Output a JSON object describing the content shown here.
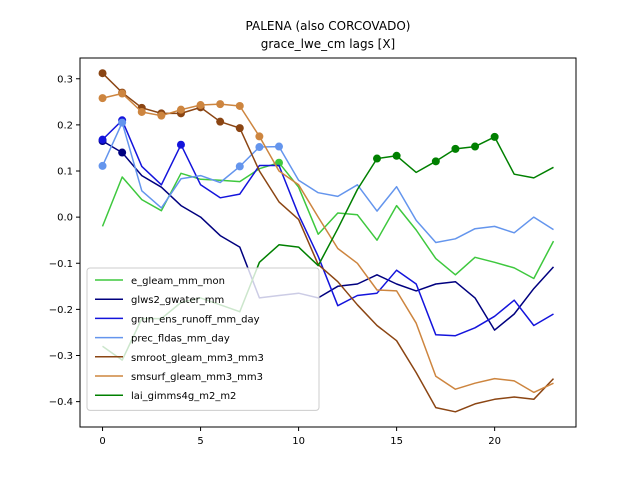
{
  "chart_data": {
    "type": "line",
    "title": "PALENA (also CORCOVADO)",
    "subtitle": "grace_lwe_cm lags [X]",
    "xlabel": "",
    "ylabel": "",
    "xlim": [
      -1.15,
      24.15
    ],
    "ylim": [
      -0.455,
      0.345
    ],
    "xticks": [
      0,
      5,
      10,
      15,
      20
    ],
    "yticks": [
      -0.4,
      -0.3,
      -0.2,
      -0.1,
      0.0,
      0.1,
      0.2,
      0.3
    ],
    "ytick_labels": [
      "−0.4",
      "−0.3",
      "−0.2",
      "−0.1",
      "0.0",
      "0.1",
      "0.2",
      "0.3"
    ],
    "grid": false,
    "legend_position": "lower-left",
    "series": [
      {
        "name": "e_gleam_mm_mon",
        "color": "#3ec83e",
        "x": [
          0,
          1,
          2,
          3,
          4,
          5,
          6,
          7,
          8,
          9,
          10,
          11,
          12,
          13,
          14,
          15,
          16,
          17,
          18,
          19,
          20,
          21,
          22,
          23
        ],
        "values": [
          -0.02,
          0.087,
          0.038,
          0.014,
          0.095,
          0.082,
          0.08,
          0.077,
          0.105,
          0.118,
          0.065,
          -0.037,
          0.009,
          0.005,
          -0.05,
          0.025,
          -0.028,
          -0.09,
          -0.125,
          -0.087,
          -0.098,
          -0.11,
          -0.133,
          -0.052
        ],
        "markers": [
          9
        ]
      },
      {
        "name": "glws2_gwater_mm",
        "color": "#00007f",
        "x": [
          0,
          1,
          2,
          3,
          4,
          5,
          6,
          7,
          8,
          9,
          10,
          11,
          12,
          13,
          14,
          15,
          16,
          17,
          18,
          19,
          20,
          21,
          22,
          23
        ],
        "values": [
          0.165,
          0.14,
          0.09,
          0.065,
          0.025,
          0.0,
          -0.04,
          -0.065,
          -0.175,
          -0.17,
          -0.165,
          -0.175,
          -0.15,
          -0.145,
          -0.125,
          -0.145,
          -0.16,
          -0.145,
          -0.14,
          -0.175,
          -0.245,
          -0.21,
          -0.155,
          -0.108
        ],
        "markers": [
          0,
          1
        ]
      },
      {
        "name": "grun_ens_runoff_mm_day",
        "color": "#1414dc",
        "x": [
          0,
          1,
          2,
          3,
          4,
          5,
          6,
          7,
          8,
          9,
          10,
          11,
          12,
          13,
          14,
          15,
          16,
          17,
          18,
          19,
          20,
          21,
          22,
          23
        ],
        "values": [
          0.168,
          0.21,
          0.11,
          0.07,
          0.157,
          0.07,
          0.042,
          0.05,
          0.112,
          0.112,
          0.005,
          -0.085,
          -0.192,
          -0.17,
          -0.165,
          -0.115,
          -0.145,
          -0.255,
          -0.257,
          -0.24,
          -0.215,
          -0.18,
          -0.235,
          -0.21
        ],
        "markers": [
          0,
          1,
          4
        ]
      },
      {
        "name": "prec_fldas_mm_day",
        "color": "#6495ed",
        "x": [
          0,
          1,
          2,
          3,
          4,
          5,
          6,
          7,
          8,
          9,
          10,
          11,
          12,
          13,
          14,
          15,
          16,
          17,
          18,
          19,
          20,
          21,
          22,
          23
        ],
        "values": [
          0.111,
          0.205,
          0.057,
          0.02,
          0.083,
          0.09,
          0.075,
          0.11,
          0.152,
          0.153,
          0.08,
          0.053,
          0.045,
          0.07,
          0.013,
          0.066,
          -0.007,
          -0.055,
          -0.047,
          -0.025,
          -0.02,
          -0.034,
          0.0,
          -0.027
        ],
        "markers": [
          0,
          1,
          7,
          8,
          9
        ]
      },
      {
        "name": "smroot_gleam_mm3_mm3",
        "color": "#8b4513",
        "x": [
          0,
          1,
          2,
          3,
          4,
          5,
          6,
          7,
          8,
          9,
          10,
          11,
          12,
          13,
          14,
          15,
          16,
          17,
          18,
          19,
          20,
          21,
          22,
          23
        ],
        "values": [
          0.312,
          0.27,
          0.237,
          0.225,
          0.225,
          0.238,
          0.207,
          0.193,
          0.1,
          0.033,
          -0.005,
          -0.103,
          -0.14,
          -0.19,
          -0.235,
          -0.268,
          -0.337,
          -0.413,
          -0.422,
          -0.405,
          -0.395,
          -0.39,
          -0.395,
          -0.35
        ],
        "markers": [
          0,
          1,
          2,
          3,
          4,
          5,
          6,
          7
        ]
      },
      {
        "name": "smsurf_gleam_mm3_mm3",
        "color": "#cd853f",
        "x": [
          0,
          1,
          2,
          3,
          4,
          5,
          6,
          7,
          8,
          9,
          10,
          11,
          12,
          13,
          14,
          15,
          16,
          17,
          18,
          19,
          20,
          21,
          22,
          23
        ],
        "values": [
          0.258,
          0.268,
          0.228,
          0.22,
          0.233,
          0.243,
          0.245,
          0.241,
          0.175,
          0.1,
          0.07,
          0.0,
          -0.068,
          -0.1,
          -0.158,
          -0.16,
          -0.23,
          -0.345,
          -0.373,
          -0.36,
          -0.35,
          -0.355,
          -0.38,
          -0.36
        ],
        "markers": [
          0,
          1,
          2,
          3,
          4,
          5,
          6,
          7,
          8
        ]
      },
      {
        "name": "lai_gimms4g_m2_m2",
        "color": "#008000",
        "x": [
          0,
          1,
          2,
          3,
          4,
          5,
          6,
          7,
          8,
          9,
          10,
          11,
          12,
          13,
          14,
          15,
          16,
          17,
          18,
          19,
          20,
          21,
          22,
          23
        ],
        "values": [
          -0.28,
          -0.31,
          -0.22,
          -0.22,
          -0.185,
          -0.175,
          -0.19,
          -0.205,
          -0.098,
          -0.06,
          -0.065,
          -0.105,
          -0.025,
          0.06,
          0.127,
          0.133,
          0.097,
          0.121,
          0.148,
          0.153,
          0.174,
          0.093,
          0.085,
          0.108
        ],
        "markers": [
          14,
          15,
          17,
          18,
          19,
          20
        ]
      }
    ]
  }
}
